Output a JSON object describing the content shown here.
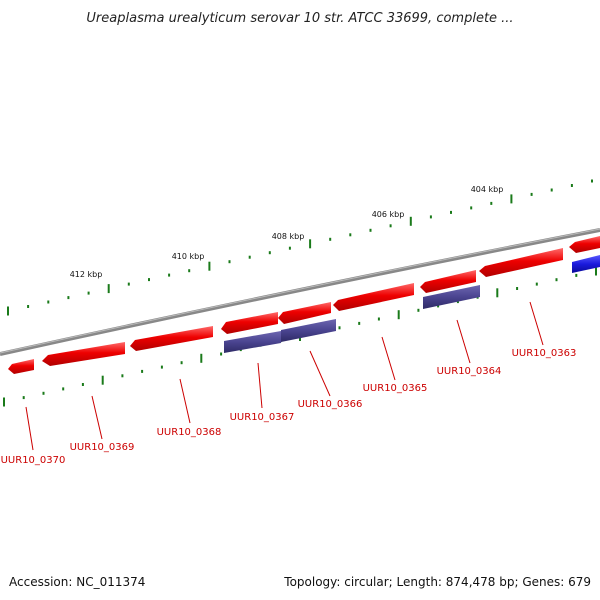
{
  "title": "Ureaplasma urealyticum serovar 10 str. ATCC 33699, complete ...",
  "footer": {
    "accession": "Accession: NC_011374",
    "summary": "Topology: circular; Length: 874,478 bp; Genes: 679"
  },
  "scale_labels": [
    "404 kbp",
    "406 kbp",
    "408 kbp",
    "410 kbp",
    "412 kbp"
  ],
  "genes": [
    {
      "name": "UUR10_0363"
    },
    {
      "name": "UUR10_0364"
    },
    {
      "name": "UUR10_0365"
    },
    {
      "name": "UUR10_0366"
    },
    {
      "name": "UUR10_0367"
    },
    {
      "name": "UUR10_0368"
    },
    {
      "name": "UUR10_0369"
    },
    {
      "name": "UUR10_0370"
    }
  ],
  "colors": {
    "reverse_strand": "#ee0000",
    "forward_strand": "#1a1add",
    "overlay": "#4a4490",
    "backbone": "#888888",
    "tick": "#1a7a1a",
    "label": "#cc0000"
  }
}
